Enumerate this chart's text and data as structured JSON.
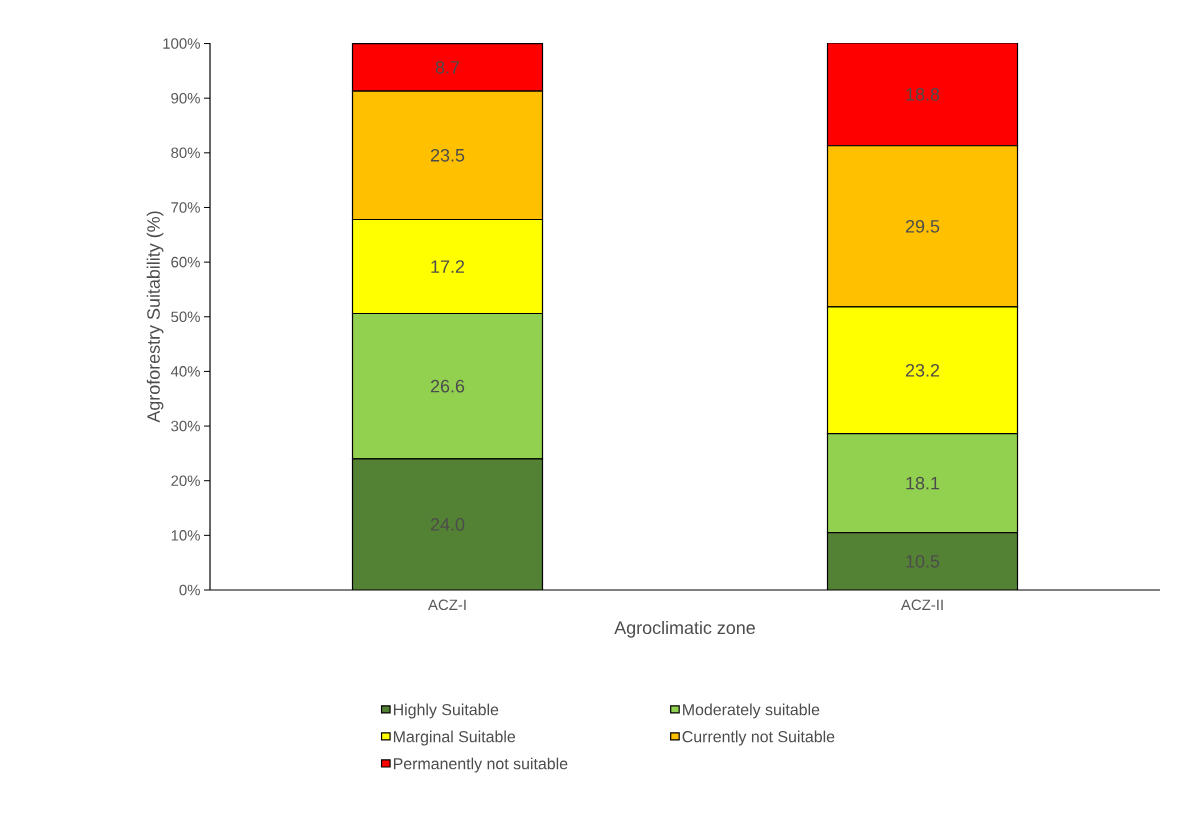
{
  "chart_data": {
    "type": "bar",
    "stacked": true,
    "xlabel": "Agroclimatic zone",
    "ylabel": "Agroforestry Suitability (%)",
    "categories": [
      "ACZ-I",
      "ACZ-II"
    ],
    "series": [
      {
        "name": "Highly Suitable",
        "color": "#548235",
        "values": [
          24.0,
          10.5
        ],
        "value_labels": [
          "24.0",
          "10.5"
        ]
      },
      {
        "name": "Moderately suitable",
        "color": "#92d050",
        "values": [
          26.6,
          18.1
        ],
        "value_labels": [
          "26.6",
          "18.1"
        ]
      },
      {
        "name": "Marginal Suitable",
        "color": "#ffff00",
        "values": [
          17.2,
          23.2
        ],
        "value_labels": [
          "17.2",
          "23.2"
        ]
      },
      {
        "name": "Currently not Suitable",
        "color": "#ffc000",
        "values": [
          23.5,
          29.5
        ],
        "value_labels": [
          "23.5",
          "29.5"
        ]
      },
      {
        "name": "Permanently not suitable",
        "color": "#ff0000",
        "values": [
          8.7,
          18.8
        ],
        "value_labels": [
          "8.7",
          "18.8"
        ]
      }
    ],
    "ylim": [
      0,
      100.1
    ],
    "yticks": [
      {
        "value": 0,
        "label": "0%"
      },
      {
        "value": 10,
        "label": "10%"
      },
      {
        "value": 20,
        "label": "20%"
      },
      {
        "value": 30,
        "label": "30%"
      },
      {
        "value": 40,
        "label": "40%"
      },
      {
        "value": 50,
        "label": "50%"
      },
      {
        "value": 60,
        "label": "60%"
      },
      {
        "value": 70,
        "label": "70%"
      },
      {
        "value": 80,
        "label": "80%"
      },
      {
        "value": 90,
        "label": "90%"
      },
      {
        "value": 100,
        "label": "100%"
      }
    ],
    "grid": false,
    "legend": "bottom"
  }
}
